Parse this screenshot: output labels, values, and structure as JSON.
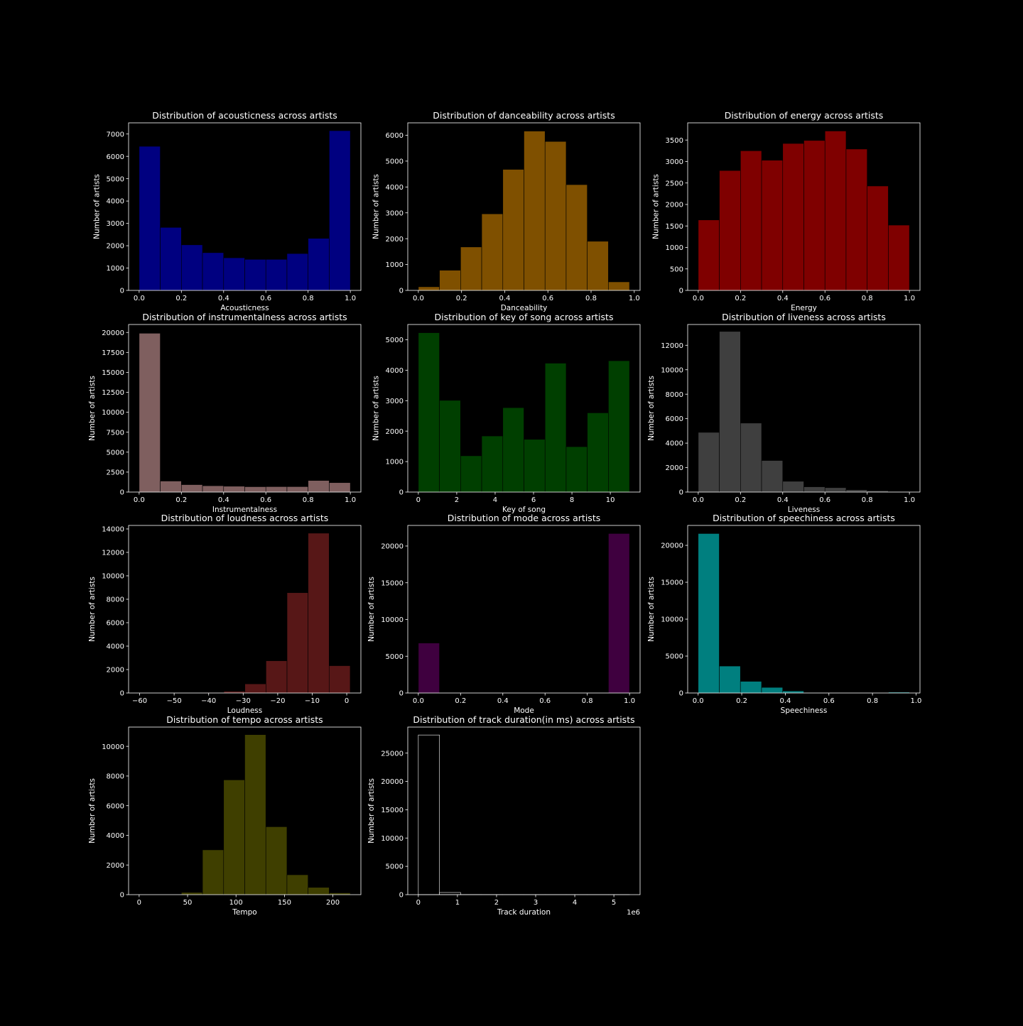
{
  "figure": {
    "background": "#000000",
    "foreground": "#ffffff"
  },
  "chart_data": [
    {
      "type": "bar",
      "title": "Distribution of acousticness across artists",
      "xlabel": "Acousticness",
      "ylabel": "Number of artists",
      "color": "#000080",
      "xlim": [
        -0.05,
        1.05
      ],
      "ylim": [
        0,
        7500
      ],
      "xticks": [
        0,
        0.2,
        0.4,
        0.6,
        0.8,
        1
      ],
      "xtick_labels": [
        "0.0",
        "0.2",
        "0.4",
        "0.6",
        "0.8",
        "1.0"
      ],
      "yticks": [
        0,
        1000,
        2000,
        3000,
        4000,
        5000,
        6000,
        7000
      ],
      "ytick_labels": [
        "0",
        "1000",
        "2000",
        "3000",
        "4000",
        "5000",
        "6000",
        "7000"
      ],
      "bin_edges": [
        0,
        0.1,
        0.2,
        0.3,
        0.4,
        0.5,
        0.6,
        0.7,
        0.8,
        0.9,
        1.0
      ],
      "values": [
        6450,
        2820,
        2040,
        1690,
        1460,
        1390,
        1390,
        1650,
        2330,
        7150
      ]
    },
    {
      "type": "bar",
      "title": "Distribution of danceability across artists",
      "xlabel": "Danceability",
      "ylabel": "Number of artists",
      "color": "#7f5000",
      "xlim": [
        -0.049,
        1.027
      ],
      "ylim": [
        0,
        6480
      ],
      "xticks": [
        0,
        0.2,
        0.4,
        0.6,
        0.8,
        1
      ],
      "xtick_labels": [
        "0.0",
        "0.2",
        "0.4",
        "0.6",
        "0.8",
        "1.0"
      ],
      "yticks": [
        0,
        1000,
        2000,
        3000,
        4000,
        5000,
        6000
      ],
      "ytick_labels": [
        "0",
        "1000",
        "2000",
        "3000",
        "4000",
        "5000",
        "6000"
      ],
      "bin_edges": [
        0,
        0.0978,
        0.1956,
        0.2934,
        0.3912,
        0.489,
        0.5868,
        0.6846,
        0.7824,
        0.8802,
        0.978
      ],
      "values": [
        140,
        780,
        1680,
        2960,
        4680,
        6160,
        5760,
        4090,
        1900,
        330
      ]
    },
    {
      "type": "bar",
      "title": "Distribution of energy across artists",
      "xlabel": "Energy",
      "ylabel": "Number of artists",
      "color": "#7f0000",
      "xlim": [
        -0.05,
        1.05
      ],
      "ylim": [
        0,
        3900
      ],
      "xticks": [
        0,
        0.2,
        0.4,
        0.6,
        0.8,
        1
      ],
      "xtick_labels": [
        "0.0",
        "0.2",
        "0.4",
        "0.6",
        "0.8",
        "1.0"
      ],
      "yticks": [
        0,
        500,
        1000,
        1500,
        2000,
        2500,
        3000,
        3500
      ],
      "ytick_labels": [
        "0",
        "500",
        "1000",
        "1500",
        "2000",
        "2500",
        "3000",
        "3500"
      ],
      "bin_edges": [
        0,
        0.1,
        0.2,
        0.3,
        0.4,
        0.5,
        0.6,
        0.7,
        0.8,
        0.9,
        1.0
      ],
      "values": [
        1640,
        2790,
        3250,
        3030,
        3420,
        3490,
        3710,
        3290,
        2430,
        1520
      ]
    },
    {
      "type": "bar",
      "title": "Distribution of instrumentalness across artists",
      "xlabel": "Instrumentalness",
      "ylabel": "Number of artists",
      "color": "#7f5f5f",
      "xlim": [
        -0.05,
        1.05
      ],
      "ylim": [
        0,
        21000
      ],
      "xticks": [
        0,
        0.2,
        0.4,
        0.6,
        0.8,
        1
      ],
      "xtick_labels": [
        "0.0",
        "0.2",
        "0.4",
        "0.6",
        "0.8",
        "1.0"
      ],
      "yticks": [
        0,
        2500,
        5000,
        7500,
        10000,
        12500,
        15000,
        17500,
        20000
      ],
      "ytick_labels": [
        "0",
        "2500",
        "5000",
        "7500",
        "10000",
        "12500",
        "15000",
        "17500",
        "20000"
      ],
      "bin_edges": [
        0,
        0.1,
        0.2,
        0.3,
        0.4,
        0.5,
        0.6,
        0.7,
        0.8,
        0.9,
        1.0
      ],
      "values": [
        19900,
        1380,
        930,
        790,
        730,
        670,
        680,
        680,
        1450,
        1180
      ]
    },
    {
      "type": "bar",
      "title": "Distribution of key of song across artists",
      "xlabel": "Key of song",
      "ylabel": "Number of artists",
      "color": "#003f00",
      "xlim": [
        -0.55,
        11.55
      ],
      "ylim": [
        0,
        5500
      ],
      "xticks": [
        0,
        2,
        4,
        6,
        8,
        10
      ],
      "xtick_labels": [
        "0",
        "2",
        "4",
        "6",
        "8",
        "10"
      ],
      "yticks": [
        0,
        1000,
        2000,
        3000,
        4000,
        5000
      ],
      "ytick_labels": [
        "0",
        "1000",
        "2000",
        "3000",
        "4000",
        "5000"
      ],
      "bin_edges": [
        0,
        1.1,
        2.2,
        3.3,
        4.4,
        5.5,
        6.6,
        7.7,
        8.8,
        9.9,
        11.0
      ],
      "values": [
        5230,
        3010,
        1190,
        1840,
        2770,
        1730,
        4230,
        1490,
        2600,
        4310
      ]
    },
    {
      "type": "bar",
      "title": "Distribution of liveness across artists",
      "xlabel": "Liveness",
      "ylabel": "Number of artists",
      "color": "#3f3f3f",
      "xlim": [
        -0.05,
        1.05
      ],
      "ylim": [
        0,
        13700
      ],
      "xticks": [
        0,
        0.2,
        0.4,
        0.6,
        0.8,
        1
      ],
      "xtick_labels": [
        "0.0",
        "0.2",
        "0.4",
        "0.6",
        "0.8",
        "1.0"
      ],
      "yticks": [
        0,
        2000,
        4000,
        6000,
        8000,
        10000,
        12000
      ],
      "ytick_labels": [
        "0",
        "2000",
        "4000",
        "6000",
        "8000",
        "10000",
        "12000"
      ],
      "bin_edges": [
        0,
        0.1,
        0.2,
        0.3,
        0.4,
        0.5,
        0.6,
        0.7,
        0.8,
        0.9,
        1.0
      ],
      "values": [
        4880,
        13130,
        5640,
        2580,
        880,
        430,
        360,
        190,
        110,
        50
      ]
    },
    {
      "type": "bar",
      "title": "Distribution of loudness across artists",
      "xlabel": "Loudness",
      "ylabel": "Number of artists",
      "color": "#571717",
      "xlim": [
        -63.2,
        4.1
      ],
      "ylim": [
        0,
        14300
      ],
      "xticks": [
        -60,
        -50,
        -40,
        -30,
        -20,
        -10,
        0
      ],
      "xtick_labels": [
        "−60",
        "−50",
        "−40",
        "−30",
        "−20",
        "−10",
        "0"
      ],
      "yticks": [
        0,
        2000,
        4000,
        6000,
        8000,
        10000,
        12000,
        14000
      ],
      "ytick_labels": [
        "0",
        "2000",
        "4000",
        "6000",
        "8000",
        "10000",
        "12000",
        "14000"
      ],
      "bin_edges": [
        -60.0,
        -53.9,
        -47.8,
        -41.7,
        -35.6,
        -29.5,
        -23.4,
        -17.3,
        -11.2,
        -5.1,
        1.0
      ],
      "values": [
        5,
        10,
        20,
        50,
        150,
        780,
        2750,
        8560,
        13640,
        2330
      ]
    },
    {
      "type": "bar",
      "title": "Distribution of mode across artists",
      "xlabel": "Mode",
      "ylabel": "Number of artists",
      "color": "#3f003f",
      "xlim": [
        -0.05,
        1.05
      ],
      "ylim": [
        0,
        22800
      ],
      "xticks": [
        0,
        0.2,
        0.4,
        0.6,
        0.8,
        1
      ],
      "xtick_labels": [
        "0.0",
        "0.2",
        "0.4",
        "0.6",
        "0.8",
        "1.0"
      ],
      "yticks": [
        0,
        5000,
        10000,
        15000,
        20000
      ],
      "ytick_labels": [
        "0",
        "5000",
        "10000",
        "15000",
        "20000"
      ],
      "bin_edges": [
        0,
        0.1,
        0.2,
        0.3,
        0.4,
        0.5,
        0.6,
        0.7,
        0.8,
        0.9,
        1.0
      ],
      "values": [
        6800,
        0,
        0,
        0,
        0,
        0,
        0,
        0,
        0,
        21700
      ]
    },
    {
      "type": "bar",
      "title": "Distribution of speechiness across artists",
      "xlabel": "Speechiness",
      "ylabel": "Number of artists",
      "color": "#007f7f",
      "xlim": [
        -0.048,
        1.018
      ],
      "ylim": [
        0,
        22700
      ],
      "xticks": [
        0,
        0.2,
        0.4,
        0.6,
        0.8,
        1
      ],
      "xtick_labels": [
        "0.0",
        "0.2",
        "0.4",
        "0.6",
        "0.8",
        "1.0"
      ],
      "yticks": [
        0,
        5000,
        10000,
        15000,
        20000
      ],
      "ytick_labels": [
        "0",
        "5000",
        "10000",
        "15000",
        "20000"
      ],
      "bin_edges": [
        0,
        0.097,
        0.194,
        0.291,
        0.388,
        0.485,
        0.582,
        0.679,
        0.776,
        0.873,
        0.97
      ],
      "values": [
        21600,
        3650,
        1580,
        760,
        280,
        60,
        30,
        20,
        30,
        120
      ]
    },
    {
      "type": "bar",
      "title": "Distribution of tempo across artists",
      "xlabel": "Tempo",
      "ylabel": "Number of artists",
      "color": "#3f3f00",
      "xlim": [
        -10.9,
        228.9
      ],
      "ylim": [
        0,
        11300
      ],
      "xticks": [
        0,
        50,
        100,
        150,
        200
      ],
      "xtick_labels": [
        "0",
        "50",
        "100",
        "150",
        "200"
      ],
      "yticks": [
        0,
        2000,
        4000,
        6000,
        8000,
        10000
      ],
      "ytick_labels": [
        "0",
        "2000",
        "4000",
        "6000",
        "8000",
        "10000"
      ],
      "bin_edges": [
        0,
        21.8,
        43.6,
        65.4,
        87.2,
        109.0,
        130.8,
        152.6,
        174.4,
        196.2,
        218.0
      ],
      "values": [
        20,
        10,
        150,
        3020,
        7740,
        10790,
        4580,
        1340,
        490,
        120
      ]
    },
    {
      "type": "bar",
      "title": "Distribution of track duration(in ms) across artists",
      "xlabel": "Track duration",
      "ylabel": "Number of artists",
      "color": "#000000",
      "edgecolor": "#ffffff",
      "x_offset_label": "1e6",
      "xlim": [
        -0.27,
        5.67
      ],
      "ylim": [
        0,
        29600
      ],
      "xticks": [
        0,
        1,
        2,
        3,
        4,
        5
      ],
      "xtick_labels": [
        "0",
        "1",
        "2",
        "3",
        "4",
        "5"
      ],
      "yticks": [
        0,
        5000,
        10000,
        15000,
        20000,
        25000
      ],
      "ytick_labels": [
        "0",
        "5000",
        "10000",
        "15000",
        "20000",
        "25000"
      ],
      "bin_edges": [
        0,
        0.54,
        1.08,
        1.62,
        2.16,
        2.7,
        3.24,
        3.78,
        4.32,
        4.86,
        5.4
      ],
      "values": [
        28200,
        380,
        20,
        10,
        5,
        3,
        2,
        2,
        1,
        1
      ]
    }
  ]
}
